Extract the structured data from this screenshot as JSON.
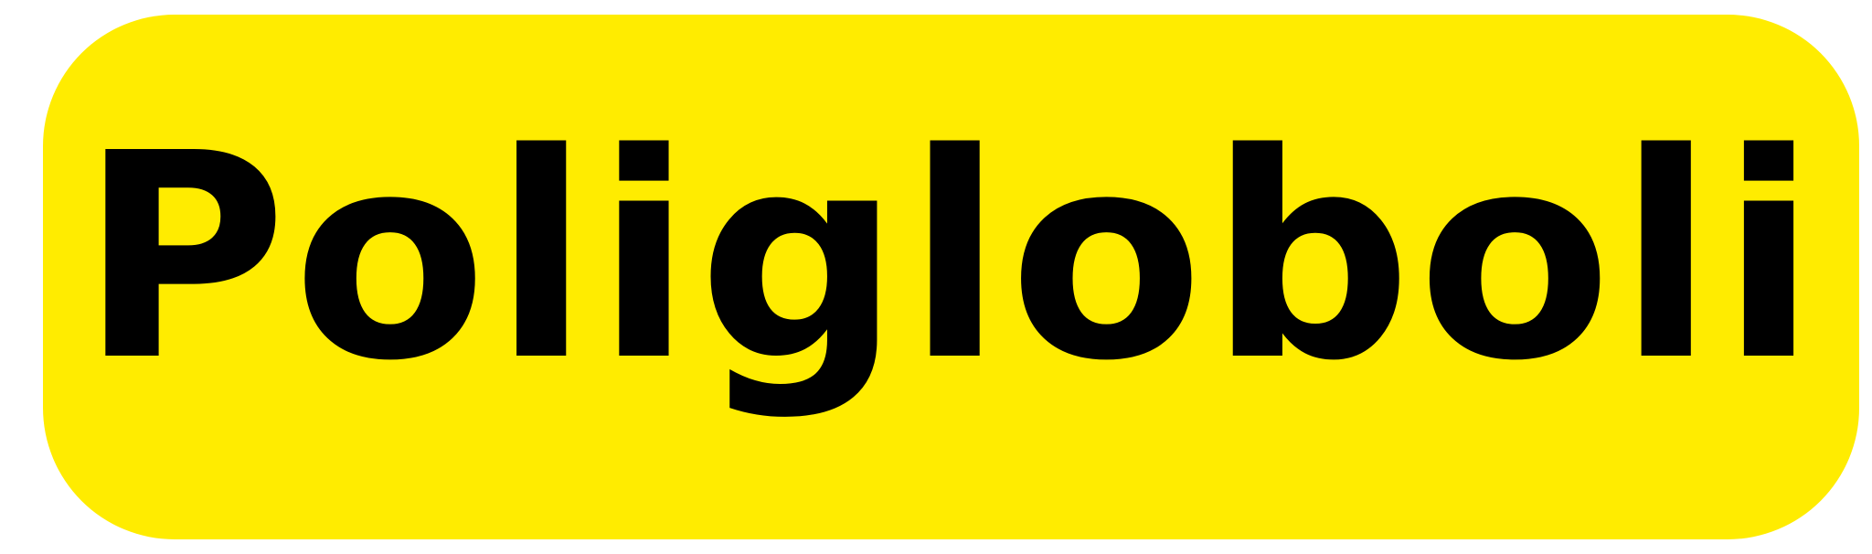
{
  "label": {
    "text": "Poligloboli"
  },
  "colors": {
    "badge_background": "#FFEC00",
    "text": "#000000",
    "page_background": "#FFFFFF"
  }
}
